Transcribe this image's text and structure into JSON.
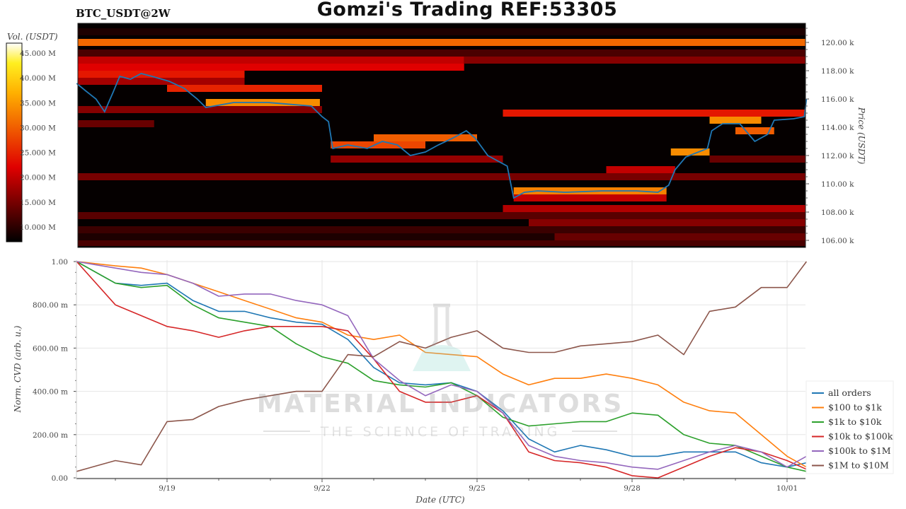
{
  "header": {
    "title": "Gomzi's Trading REF:53305",
    "subtitle": "BTC_USDT@2W"
  },
  "watermark": {
    "line1": "MATERIAL INDICATORS",
    "line2": "THE SCIENCE OF TRADING"
  },
  "chart_data": [
    {
      "type": "heatmap",
      "title": "BTC_USDT@2W",
      "ylabel": "Price (USDT)",
      "colorbar_label": "Vol. (USDT)",
      "colorbar_ticks": [
        "10.000 M",
        "15.000 M",
        "20.000 M",
        "25.000 M",
        "30.000 M",
        "35.000 M",
        "40.000 M",
        "45.000 M"
      ],
      "colorbar_range": [
        7,
        47
      ],
      "colormap": "hot",
      "y_ticks": [
        "106.00 k",
        "108.00 k",
        "110.00 k",
        "112.00 k",
        "114.00 k",
        "116.00 k",
        "118.00 k",
        "120.00 k"
      ],
      "ylim": [
        105.6,
        121.3
      ],
      "xlim": [
        "09/17 06:00",
        "10/01 09:00"
      ],
      "bands": [
        {
          "price": [
            119.75,
            120.25
          ],
          "from": "09/17 06:00",
          "to": "10/01 09:00",
          "vol": 31
        },
        {
          "price": [
            120.5,
            121.0
          ],
          "from": "09/17 06:00",
          "to": "10/01 09:00",
          "vol": 9
        },
        {
          "price": [
            119.0,
            119.5
          ],
          "from": "09/17 06:00",
          "to": "10/01 09:00",
          "vol": 12
        },
        {
          "price": [
            118.5,
            119.0
          ],
          "from": "09/17 06:00",
          "to": "09/24 18:00",
          "vol": 20
        },
        {
          "price": [
            118.5,
            119.0
          ],
          "from": "09/24 18:00",
          "to": "10/01 09:00",
          "vol": 16
        },
        {
          "price": [
            118.0,
            118.5
          ],
          "from": "09/17 06:00",
          "to": "09/24 18:00",
          "vol": 22
        },
        {
          "price": [
            117.5,
            118.0
          ],
          "from": "09/17 06:00",
          "to": "09/20 12:00",
          "vol": 24
        },
        {
          "price": [
            117.0,
            117.5
          ],
          "from": "09/17 06:00",
          "to": "09/20 12:00",
          "vol": 18
        },
        {
          "price": [
            116.5,
            117.0
          ],
          "from": "09/19 00:00",
          "to": "09/22 00:00",
          "vol": 25
        },
        {
          "price": [
            115.5,
            116.0
          ],
          "from": "09/19 18:00",
          "to": "09/21 23:00",
          "vol": 34
        },
        {
          "price": [
            115.0,
            115.5
          ],
          "from": "09/17 06:00",
          "to": "09/22 00:00",
          "vol": 16
        },
        {
          "price": [
            114.75,
            115.25
          ],
          "from": "09/25 12:00",
          "to": "10/01 09:00",
          "vol": 24
        },
        {
          "price": [
            114.25,
            114.75
          ],
          "from": "09/29 12:00",
          "to": "09/30 12:00",
          "vol": 34
        },
        {
          "price": [
            114.0,
            114.5
          ],
          "from": "09/17 06:00",
          "to": "09/18 18:00",
          "vol": 14
        },
        {
          "price": [
            113.5,
            114.0
          ],
          "from": "09/30 00:00",
          "to": "09/30 18:00",
          "vol": 30
        },
        {
          "price": [
            113.0,
            113.5
          ],
          "from": "09/23 00:00",
          "to": "09/25 00:00",
          "vol": 30
        },
        {
          "price": [
            112.5,
            113.0
          ],
          "from": "09/22 04:00",
          "to": "09/24 00:00",
          "vol": 28
        },
        {
          "price": [
            112.0,
            112.5
          ],
          "from": "09/28 18:00",
          "to": "09/29 12:00",
          "vol": 34
        },
        {
          "price": [
            111.5,
            112.0
          ],
          "from": "09/22 04:00",
          "to": "09/25 12:00",
          "vol": 17
        },
        {
          "price": [
            111.5,
            112.0
          ],
          "from": "09/29 12:00",
          "to": "10/01 09:00",
          "vol": 14
        },
        {
          "price": [
            110.75,
            111.25
          ],
          "from": "09/27 12:00",
          "to": "09/28 20:00",
          "vol": 20
        },
        {
          "price": [
            110.25,
            110.75
          ],
          "from": "09/17 06:00",
          "to": "10/01 09:00",
          "vol": 15
        },
        {
          "price": [
            109.25,
            109.75
          ],
          "from": "09/25 17:00",
          "to": "09/28 16:00",
          "vol": 33
        },
        {
          "price": [
            108.75,
            109.25
          ],
          "from": "09/25 17:00",
          "to": "09/28 16:00",
          "vol": 20
        },
        {
          "price": [
            108.0,
            108.5
          ],
          "from": "09/25 12:00",
          "to": "10/01 09:00",
          "vol": 19
        },
        {
          "price": [
            107.5,
            108.0
          ],
          "from": "09/17 06:00",
          "to": "10/01 09:00",
          "vol": 13
        },
        {
          "price": [
            107.0,
            107.5
          ],
          "from": "09/26 00:00",
          "to": "10/01 09:00",
          "vol": 16
        },
        {
          "price": [
            106.5,
            107.0
          ],
          "from": "09/17 06:00",
          "to": "10/01 09:00",
          "vol": 11
        },
        {
          "price": [
            106.0,
            106.5
          ],
          "from": "09/17 06:00",
          "to": "09/26 12:00",
          "vol": 9
        },
        {
          "price": [
            106.0,
            106.5
          ],
          "from": "09/26 12:00",
          "to": "10/01 09:00",
          "vol": 14
        },
        {
          "price": [
            105.6,
            106.0
          ],
          "from": "09/17 06:00",
          "to": "10/01 09:00",
          "vol": 12
        }
      ],
      "price_line": {
        "color": "#1f77b4",
        "x": [
          "09/17 06:00",
          "09/17 10:00",
          "09/17 15:00",
          "09/17 19:00",
          "09/17 23:00",
          "09/18 02:00",
          "09/18 07:00",
          "09/18 12:00",
          "09/18 17:00",
          "09/19 01:00",
          "09/19 08:00",
          "09/19 14:00",
          "09/19 18:00",
          "09/20 07:00",
          "09/20 23:00",
          "09/21 19:00",
          "09/22 00:00",
          "09/22 03:00",
          "09/22 05:00",
          "09/22 12:00",
          "09/22 21:00",
          "09/23 04:00",
          "09/23 11:00",
          "09/23 17:00",
          "09/24 00:00",
          "09/24 06:00",
          "09/24 13:00",
          "09/24 19:00",
          "09/24 23:00",
          "09/25 05:00",
          "09/25 14:00",
          "09/25 17:00",
          "09/25 22:00",
          "09/26 04:00",
          "09/26 17:00",
          "09/27 10:00",
          "09/28 02:00",
          "09/28 12:00",
          "09/28 17:00",
          "09/28 20:00",
          "09/29 01:00",
          "09/29 11:00",
          "09/29 13:00",
          "09/29 18:00",
          "09/30 02:00",
          "09/30 09:00",
          "09/30 15:00",
          "09/30 18:00",
          "10/01 03:00",
          "10/01 08:00",
          "10/01 09:00"
        ],
        "y": [
          117.1,
          116.6,
          116.0,
          115.1,
          116.5,
          117.6,
          117.4,
          117.8,
          117.6,
          117.25,
          116.75,
          116.0,
          115.4,
          115.75,
          115.75,
          115.5,
          114.75,
          114.4,
          112.5,
          112.75,
          112.5,
          113.0,
          112.75,
          112.0,
          112.25,
          112.75,
          113.25,
          113.75,
          113.25,
          112.0,
          111.25,
          109.0,
          109.4,
          109.5,
          109.4,
          109.5,
          109.5,
          109.4,
          109.9,
          111.0,
          111.9,
          112.5,
          113.75,
          114.25,
          114.25,
          113.0,
          113.5,
          114.5,
          114.6,
          114.75,
          116.0
        ]
      }
    },
    {
      "type": "line",
      "xlabel": "Date (UTC)",
      "ylabel": "Norm. CVD (arb. u.)",
      "ylim": [
        0,
        1
      ],
      "y_ticks": [
        "0.00",
        "200.00 m",
        "400.00 m",
        "600.00 m",
        "800.00 m",
        "1.00"
      ],
      "x_ticks": [
        "9/19",
        "9/22",
        "9/25",
        "9/28",
        "10/01"
      ],
      "grid": true,
      "legend_position": "right",
      "x": [
        "09/17 06:00",
        "09/18 00:00",
        "09/18 12:00",
        "09/19 00:00",
        "09/19 12:00",
        "09/20 00:00",
        "09/20 12:00",
        "09/21 00:00",
        "09/21 12:00",
        "09/22 00:00",
        "09/22 12:00",
        "09/23 00:00",
        "09/23 12:00",
        "09/24 00:00",
        "09/24 12:00",
        "09/25 00:00",
        "09/25 12:00",
        "09/26 00:00",
        "09/26 12:00",
        "09/27 00:00",
        "09/27 12:00",
        "09/28 00:00",
        "09/28 12:00",
        "09/29 00:00",
        "09/29 12:00",
        "09/30 00:00",
        "09/30 12:00",
        "10/01 00:00",
        "10/01 09:00"
      ],
      "series": [
        {
          "name": "all orders",
          "color": "#1f77b4",
          "values": [
            1.0,
            0.9,
            0.89,
            0.9,
            0.82,
            0.77,
            0.77,
            0.74,
            0.72,
            0.71,
            0.64,
            0.51,
            0.44,
            0.43,
            0.44,
            0.4,
            0.31,
            0.18,
            0.12,
            0.15,
            0.13,
            0.1,
            0.1,
            0.12,
            0.12,
            0.12,
            0.07,
            0.05,
            0.07
          ]
        },
        {
          "name": "$100 to $1k",
          "color": "#ff7f0e",
          "values": [
            1.0,
            0.98,
            0.97,
            0.94,
            0.9,
            0.86,
            0.82,
            0.78,
            0.74,
            0.72,
            0.66,
            0.64,
            0.66,
            0.58,
            0.57,
            0.56,
            0.48,
            0.43,
            0.46,
            0.46,
            0.48,
            0.46,
            0.43,
            0.35,
            0.31,
            0.3,
            0.2,
            0.1,
            0.05
          ]
        },
        {
          "name": "$1k to $10k",
          "color": "#2ca02c",
          "values": [
            1.0,
            0.9,
            0.88,
            0.89,
            0.8,
            0.74,
            0.72,
            0.7,
            0.62,
            0.56,
            0.53,
            0.45,
            0.43,
            0.42,
            0.44,
            0.38,
            0.28,
            0.24,
            0.25,
            0.26,
            0.26,
            0.3,
            0.29,
            0.2,
            0.16,
            0.15,
            0.1,
            0.05,
            0.03
          ]
        },
        {
          "name": "$10k to $100k",
          "color": "#d62728",
          "values": [
            1.0,
            0.8,
            0.75,
            0.7,
            0.68,
            0.65,
            0.68,
            0.7,
            0.7,
            0.7,
            0.68,
            0.55,
            0.4,
            0.35,
            0.35,
            0.38,
            0.3,
            0.12,
            0.08,
            0.07,
            0.05,
            0.01,
            0.0,
            0.05,
            0.1,
            0.14,
            0.12,
            0.08,
            0.04
          ]
        },
        {
          "name": "$100k to $1M",
          "color": "#9467bd",
          "values": [
            1.0,
            0.97,
            0.95,
            0.94,
            0.9,
            0.84,
            0.85,
            0.85,
            0.82,
            0.8,
            0.75,
            0.55,
            0.45,
            0.38,
            0.43,
            0.4,
            0.3,
            0.15,
            0.1,
            0.08,
            0.07,
            0.05,
            0.04,
            0.08,
            0.12,
            0.15,
            0.12,
            0.05,
            0.1
          ]
        },
        {
          "name": "$1M to $10M",
          "color": "#8c564b",
          "values": [
            0.03,
            0.08,
            0.06,
            0.26,
            0.27,
            0.33,
            0.36,
            0.38,
            0.4,
            0.4,
            0.57,
            0.56,
            0.63,
            0.6,
            0.65,
            0.68,
            0.6,
            0.58,
            0.58,
            0.61,
            0.62,
            0.63,
            0.66,
            0.57,
            0.77,
            0.79,
            0.88,
            0.88,
            1.0
          ]
        }
      ]
    }
  ]
}
